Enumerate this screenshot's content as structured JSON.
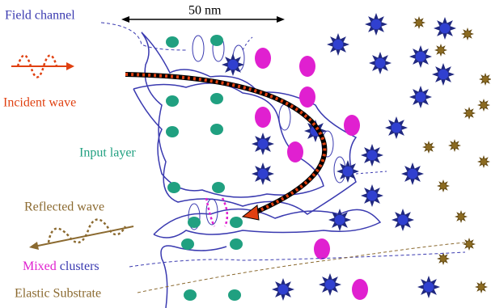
{
  "scale_label": "50 nm",
  "labels": {
    "field_channel": "Field channel",
    "incident_wave": "Incident wave",
    "input_layer": "Input layer",
    "reflected_wave": "Reflected wave",
    "mixed": "Mixed",
    "clusters": "clusters",
    "elastic_substrate": "Elastic Substrate"
  }
}
